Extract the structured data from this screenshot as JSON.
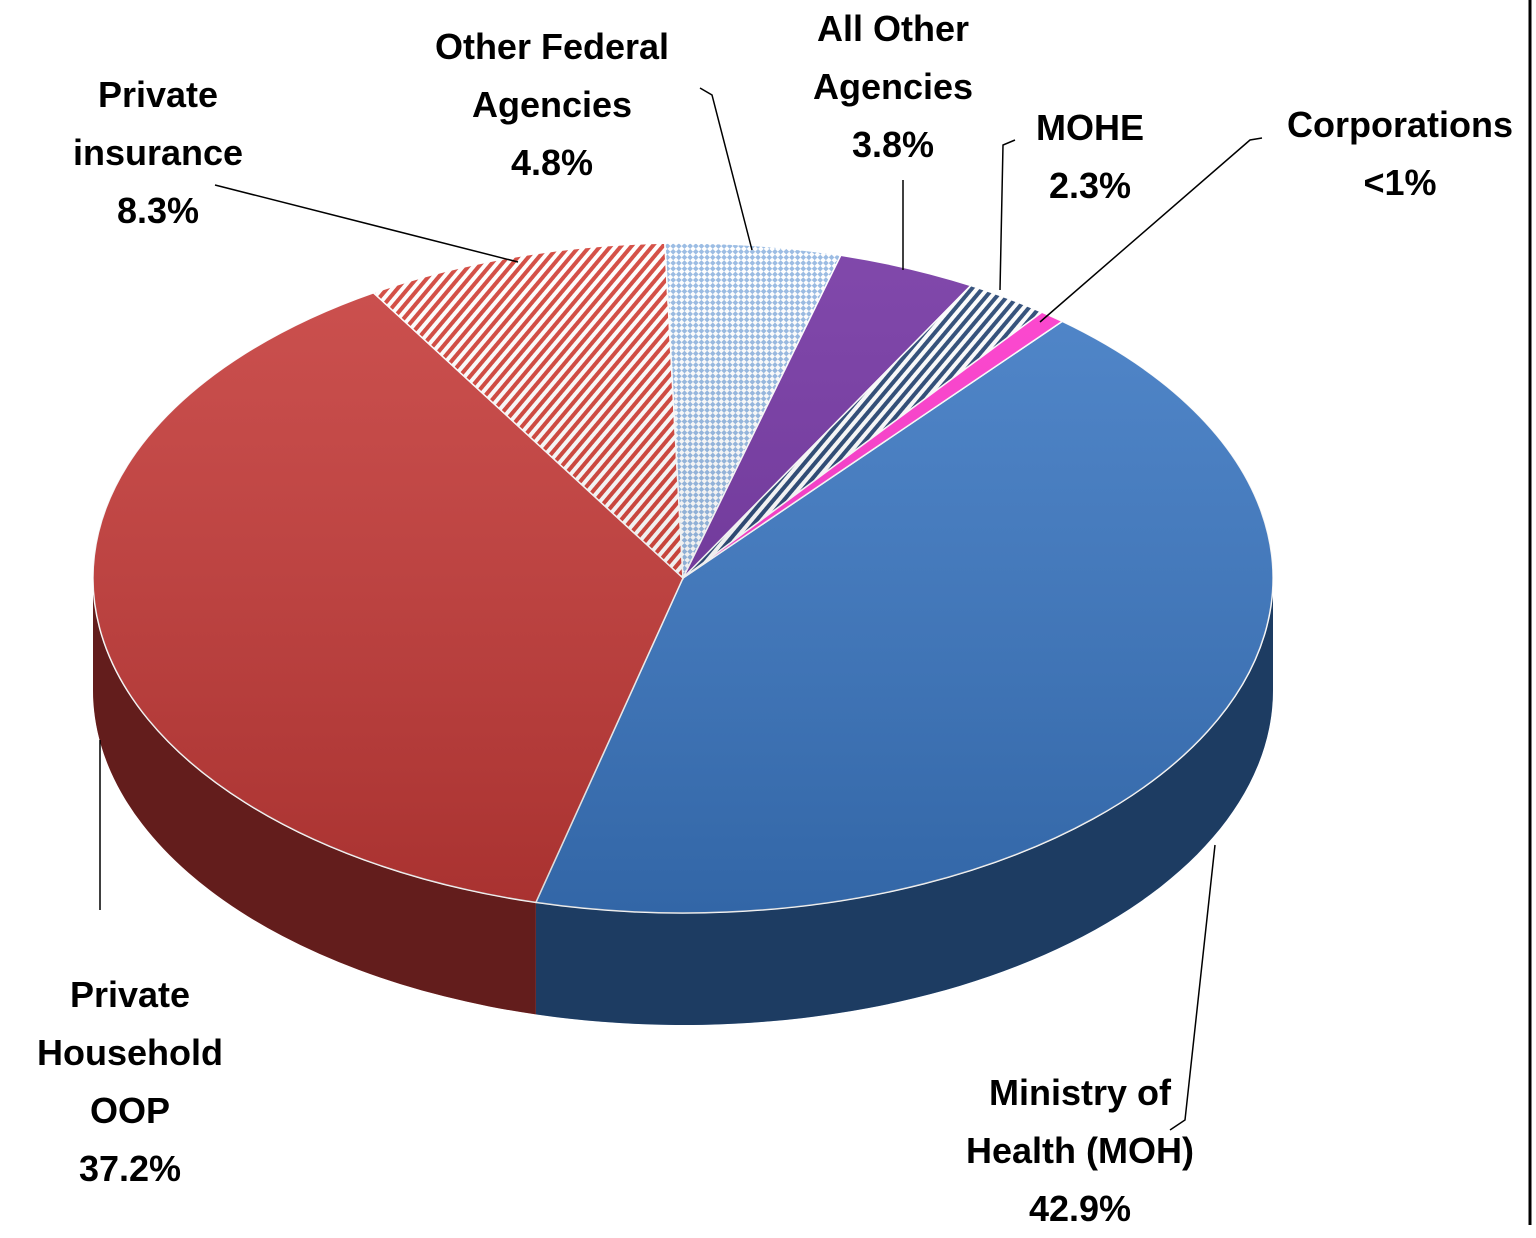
{
  "chart_data": {
    "type": "pie3d",
    "categories": [
      "Ministry of Health (MOH)",
      "Private Household OOP",
      "Private insurance",
      "Other Federal Agencies",
      "All Other Agencies",
      "MOHE",
      "Corporations"
    ],
    "values": [
      42.9,
      37.2,
      8.3,
      4.8,
      3.8,
      2.3,
      0.7
    ],
    "value_labels": [
      "42.9%",
      "37.2%",
      "8.3%",
      "4.8%",
      "3.8%",
      "2.3%",
      "<1%"
    ],
    "colors": [
      "#3b78c4",
      "#c63a38",
      "#d03a30",
      "#8fb4e0",
      "#7030a0",
      "#1f3f6e",
      "#ff33cc"
    ],
    "patterns": [
      "solid",
      "solid",
      "hatch",
      "checker",
      "solid",
      "hatch",
      "solid"
    ]
  }
}
